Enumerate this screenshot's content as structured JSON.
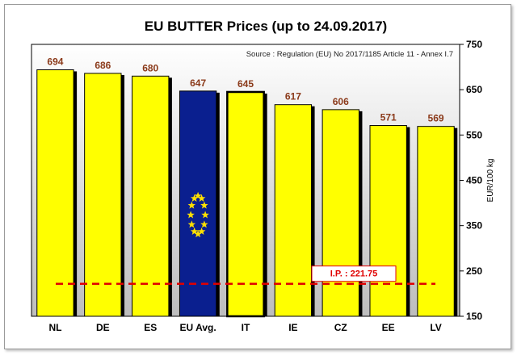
{
  "chart_data": {
    "type": "bar",
    "title": "EU BUTTER Prices  (up to 24.09.2017)",
    "source": "Source : Regulation (EU) No 2017/1185 Article 11 - Annex I.7",
    "ylabel": "EUR/100 kg",
    "ylim": [
      150,
      750
    ],
    "yticks": [
      150,
      250,
      350,
      450,
      550,
      650,
      750
    ],
    "categories": [
      "NL",
      "DE",
      "ES",
      "EU Avg.",
      "IT",
      "IE",
      "CZ",
      "EE",
      "LV"
    ],
    "values": [
      694,
      686,
      680,
      647,
      645,
      617,
      606,
      571,
      569
    ],
    "value_labels": [
      "694",
      "686",
      "680",
      "647",
      "645",
      "617",
      "606",
      "571",
      "569"
    ],
    "highlight": "EU Avg.",
    "reference_line": {
      "label": "I.P. : 221.75",
      "value": 221.75
    },
    "colors": {
      "bar": "#ffff00",
      "eu_bar": "#0a1f8f",
      "eu_star": "#ffe000",
      "label": "#8b3a1a",
      "ref_line": "#e00000",
      "plot_bg": "#c8c8c8"
    },
    "grid": false
  }
}
